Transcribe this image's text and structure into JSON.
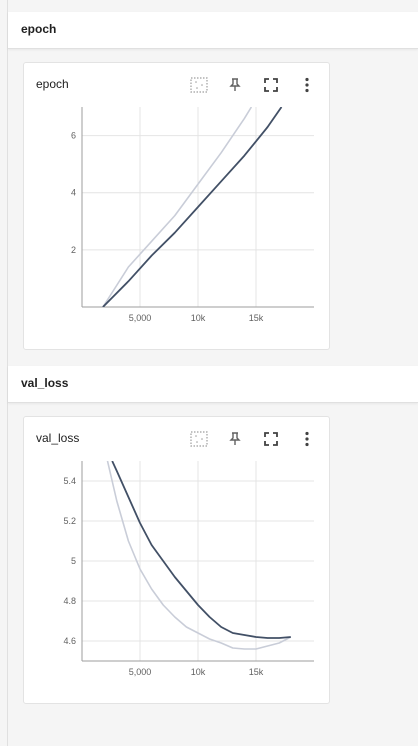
{
  "sections": [
    {
      "title": "epoch",
      "card": {
        "title": "epoch",
        "buttons": [
          {
            "name": "toggle-y-log-button",
            "icon": "dotted-square-icon"
          },
          {
            "name": "pin-button",
            "icon": "pin-icon"
          },
          {
            "name": "fullscreen-button",
            "icon": "fullscreen-icon"
          },
          {
            "name": "more-options-button",
            "icon": "more-vert-icon"
          }
        ]
      }
    },
    {
      "title": "val_loss",
      "card": {
        "title": "val_loss",
        "buttons": [
          {
            "name": "toggle-y-log-button",
            "icon": "dotted-square-icon"
          },
          {
            "name": "pin-button",
            "icon": "pin-icon"
          },
          {
            "name": "fullscreen-button",
            "icon": "fullscreen-icon"
          },
          {
            "name": "more-options-button",
            "icon": "more-vert-icon"
          }
        ]
      }
    }
  ],
  "chart_data": [
    {
      "type": "line",
      "title": "epoch",
      "xlim": [
        0,
        20000
      ],
      "ylim": [
        0,
        7
      ],
      "x_ticks": [
        5000,
        10000,
        15000
      ],
      "x_tick_labels": [
        "5,000",
        "10k",
        "15k"
      ],
      "y_ticks": [
        2,
        4,
        6
      ],
      "y_tick_labels": [
        "2",
        "4",
        "6"
      ],
      "grid": true,
      "colors": {
        "smoothed": "#425066",
        "raw": "#c9cdd8"
      },
      "series": [
        {
          "role": "smoothed",
          "x": [
            1800,
            4000,
            6000,
            8000,
            10000,
            12000,
            14000,
            16000,
            17200
          ],
          "y": [
            0,
            0.9,
            1.8,
            2.6,
            3.5,
            4.4,
            5.3,
            6.3,
            7.0
          ]
        },
        {
          "role": "raw",
          "x": [
            1800,
            4000,
            6000,
            8000,
            10000,
            12000,
            14000,
            14600
          ],
          "y": [
            0,
            1.4,
            2.3,
            3.2,
            4.3,
            5.4,
            6.6,
            7.0
          ]
        }
      ]
    },
    {
      "type": "line",
      "title": "val_loss",
      "xlim": [
        0,
        20000
      ],
      "ylim": [
        4.5,
        5.5
      ],
      "x_ticks": [
        5000,
        10000,
        15000
      ],
      "x_tick_labels": [
        "5,000",
        "10k",
        "15k"
      ],
      "y_ticks": [
        4.6,
        4.8,
        5.0,
        5.2,
        5.4
      ],
      "y_tick_labels": [
        "4.6",
        "4.8",
        "5",
        "5.2",
        "5.4"
      ],
      "grid": true,
      "colors": {
        "smoothed": "#425066",
        "raw": "#c9cdd8"
      },
      "series": [
        {
          "role": "smoothed",
          "x": [
            2600,
            3000,
            4000,
            5000,
            6000,
            7000,
            8000,
            9000,
            10000,
            11000,
            12000,
            13000,
            14000,
            15000,
            16000,
            17000,
            18000
          ],
          "y": [
            5.5,
            5.45,
            5.32,
            5.19,
            5.08,
            5.0,
            4.92,
            4.85,
            4.78,
            4.72,
            4.67,
            4.64,
            4.63,
            4.62,
            4.615,
            4.615,
            4.62
          ]
        },
        {
          "role": "raw",
          "x": [
            2200,
            3000,
            4000,
            5000,
            6000,
            7000,
            8000,
            9000,
            10000,
            11000,
            12000,
            13000,
            14000,
            15000,
            16000,
            17000,
            18000
          ],
          "y": [
            5.5,
            5.3,
            5.1,
            4.96,
            4.86,
            4.78,
            4.72,
            4.67,
            4.64,
            4.61,
            4.59,
            4.565,
            4.56,
            4.56,
            4.575,
            4.59,
            4.62
          ]
        }
      ]
    }
  ]
}
